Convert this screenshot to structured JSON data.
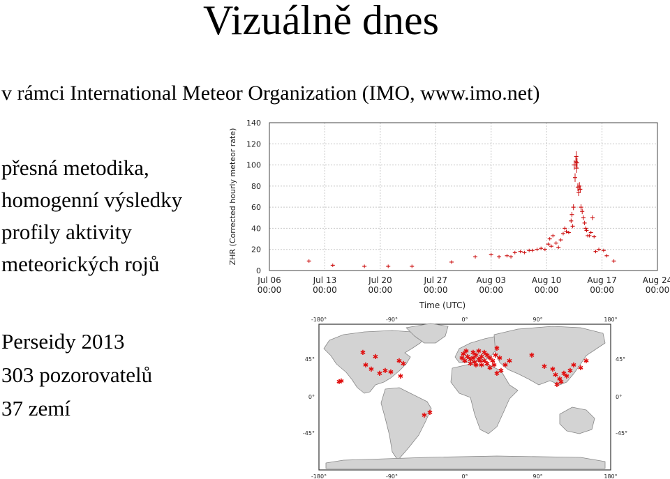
{
  "slide": {
    "title": "Vizuálně dnes",
    "subtitle": "v rámci International Meteor Organization (IMO, www.imo.net)",
    "bullets": [
      "přesná metodika,",
      "homogenní výsledky",
      "profily aktivity",
      "meteorických rojů"
    ],
    "stats": [
      "Perseidy 2013",
      "303 pozorovatelů",
      "37 zemí"
    ]
  },
  "chart_data": {
    "type": "scatter",
    "xlabel": "Time (UTC)",
    "ylabel": "ZHR (Corrected hourly meteor rate)",
    "ylim": [
      0,
      140
    ],
    "yticks": [
      0,
      20,
      40,
      60,
      80,
      100,
      120,
      140
    ],
    "xlim": [
      0,
      49
    ],
    "xticks": [
      {
        "value": 0,
        "line1": "Jul 06",
        "line2": "00:00"
      },
      {
        "value": 7,
        "line1": "Jul 13",
        "line2": "00:00"
      },
      {
        "value": 14,
        "line1": "Jul 20",
        "line2": "00:00"
      },
      {
        "value": 21,
        "line1": "Jul 27",
        "line2": "00:00"
      },
      {
        "value": 28,
        "line1": "Aug 03",
        "line2": "00:00"
      },
      {
        "value": 35,
        "line1": "Aug 10",
        "line2": "00:00"
      },
      {
        "value": 42,
        "line1": "Aug 17",
        "line2": "00:00"
      },
      {
        "value": 49,
        "line1": "Aug 24",
        "line2": "00:00"
      }
    ],
    "grid": true,
    "marker_color": "#cc1111",
    "points": [
      [
        5.0,
        9
      ],
      [
        8.0,
        5
      ],
      [
        12.0,
        4
      ],
      [
        15.0,
        4
      ],
      [
        18.0,
        4
      ],
      [
        23.0,
        8
      ],
      [
        26.0,
        13
      ],
      [
        28.0,
        15
      ],
      [
        29.0,
        13
      ],
      [
        30.0,
        14
      ],
      [
        30.5,
        13
      ],
      [
        31.0,
        17
      ],
      [
        31.7,
        18
      ],
      [
        32.2,
        17
      ],
      [
        32.8,
        19
      ],
      [
        33.2,
        19
      ],
      [
        33.8,
        20
      ],
      [
        34.3,
        21
      ],
      [
        34.8,
        20
      ],
      [
        35.2,
        25
      ],
      [
        35.4,
        30
      ],
      [
        35.6,
        23
      ],
      [
        35.8,
        33
      ],
      [
        36.2,
        26
      ],
      [
        36.5,
        22
      ],
      [
        36.8,
        29
      ],
      [
        37.1,
        35
      ],
      [
        37.3,
        40
      ],
      [
        37.5,
        37
      ],
      [
        37.8,
        36
      ],
      [
        38.1,
        47
      ],
      [
        38.2,
        53
      ],
      [
        38.3,
        42
      ],
      [
        38.4,
        60
      ],
      [
        38.5,
        100
      ],
      [
        38.6,
        88
      ],
      [
        38.7,
        103
      ],
      [
        38.75,
        108
      ],
      [
        38.8,
        97
      ],
      [
        38.85,
        102
      ],
      [
        38.95,
        79
      ],
      [
        39.05,
        74
      ],
      [
        39.15,
        80
      ],
      [
        39.25,
        77
      ],
      [
        39.35,
        60
      ],
      [
        39.5,
        56
      ],
      [
        39.65,
        50
      ],
      [
        39.8,
        45
      ],
      [
        39.95,
        40
      ],
      [
        40.05,
        38
      ],
      [
        40.2,
        33
      ],
      [
        40.4,
        33
      ],
      [
        40.6,
        36
      ],
      [
        40.8,
        50
      ],
      [
        41.0,
        32
      ],
      [
        41.2,
        18
      ],
      [
        41.6,
        20
      ],
      [
        42.2,
        19
      ],
      [
        42.6,
        14
      ],
      [
        43.5,
        9
      ]
    ]
  },
  "map": {
    "lon_labels": [
      "-180°",
      "-90°",
      "0°",
      "90°",
      "180°"
    ],
    "lat_labels": [
      "45°",
      "0°",
      "-45°"
    ],
    "marker_color": "#e01010"
  }
}
